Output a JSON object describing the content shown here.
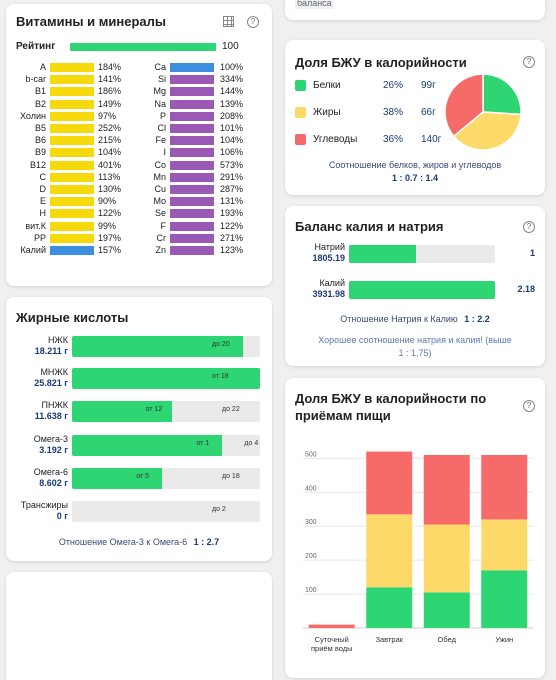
{
  "vitamins": {
    "title": "Витамины и минералы",
    "rating_label": "Рейтинг",
    "rating_value": "100",
    "rating_pct": 100,
    "left": [
      {
        "name": "A",
        "value": "184%",
        "pct": 184
      },
      {
        "name": "b-car",
        "value": "141%",
        "pct": 141
      },
      {
        "name": "B1",
        "value": "186%",
        "pct": 186
      },
      {
        "name": "B2",
        "value": "149%",
        "pct": 149
      },
      {
        "name": "Холин",
        "value": "97%",
        "pct": 97
      },
      {
        "name": "B5",
        "value": "252%",
        "pct": 252
      },
      {
        "name": "B6",
        "value": "215%",
        "pct": 215
      },
      {
        "name": "B9",
        "value": "104%",
        "pct": 104
      },
      {
        "name": "B12",
        "value": "401%",
        "pct": 401
      },
      {
        "name": "C",
        "value": "113%",
        "pct": 113
      },
      {
        "name": "D",
        "value": "130%",
        "pct": 130
      },
      {
        "name": "E",
        "value": "90%",
        "pct": 90
      },
      {
        "name": "H",
        "value": "122%",
        "pct": 122
      },
      {
        "name": "вит.К",
        "value": "99%",
        "pct": 99
      },
      {
        "name": "PP",
        "value": "197%",
        "pct": 197
      },
      {
        "name": "Калий",
        "value": "157%",
        "pct": 157
      }
    ],
    "right": [
      {
        "name": "Ca",
        "value": "100%",
        "pct": 100
      },
      {
        "name": "Si",
        "value": "334%",
        "pct": 334
      },
      {
        "name": "Mg",
        "value": "144%",
        "pct": 144
      },
      {
        "name": "Na",
        "value": "139%",
        "pct": 139
      },
      {
        "name": "P",
        "value": "208%",
        "pct": 208
      },
      {
        "name": "Cl",
        "value": "101%",
        "pct": 101
      },
      {
        "name": "Fe",
        "value": "104%",
        "pct": 104
      },
      {
        "name": "I",
        "value": "106%",
        "pct": 106
      },
      {
        "name": "Co",
        "value": "573%",
        "pct": 573
      },
      {
        "name": "Mn",
        "value": "291%",
        "pct": 291
      },
      {
        "name": "Cu",
        "value": "287%",
        "pct": 287
      },
      {
        "name": "Mo",
        "value": "131%",
        "pct": 131
      },
      {
        "name": "Se",
        "value": "193%",
        "pct": 193
      },
      {
        "name": "F",
        "value": "122%",
        "pct": 122
      },
      {
        "name": "Cr",
        "value": "271%",
        "pct": 271
      },
      {
        "name": "Zn",
        "value": "123%",
        "pct": 123
      }
    ]
  },
  "fatty": {
    "title": "Жирные кислоты",
    "rows": [
      {
        "name": "НЖК",
        "amount": "18.211 г",
        "note": "до 20",
        "fill": 0.91,
        "color": "#2ed573"
      },
      {
        "name": "МНЖК",
        "amount": "25.821 г",
        "note": "от 18",
        "fill": 1.0,
        "color": "#2ed573"
      },
      {
        "name": "ПНЖК",
        "amount": "11.638 г",
        "note": "от 12",
        "note2": "до 22",
        "fill": 0.53,
        "color": "#2ed573"
      },
      {
        "name": "Омега-3",
        "amount": "3.192 г",
        "note": "от 1",
        "note2": "до 4",
        "fill": 0.8,
        "color": "#2ed573"
      },
      {
        "name": "Омега-6",
        "amount": "8.602 г",
        "note": "от 5",
        "note2": "до 18",
        "fill": 0.48,
        "color": "#2ed573"
      },
      {
        "name": "Трансжиры",
        "amount": "0 г",
        "note": "до 2",
        "fill": 0.0,
        "color": "#2ed573"
      }
    ],
    "ratio_label": "Отношение Омега-3 к Омега-6",
    "ratio_value": "1 : 2.7"
  },
  "top_stub": {
    "text": "баланса"
  },
  "bju": {
    "title": "Доля БЖУ в калорийности",
    "rows": [
      {
        "name": "Белки",
        "pct": "26%",
        "grams": "99г",
        "color": "#2ed573"
      },
      {
        "name": "Жиры",
        "pct": "38%",
        "grams": "66г",
        "color": "#fdd96a"
      },
      {
        "name": "Углеводы",
        "pct": "36%",
        "grams": "140г",
        "color": "#f76a6a"
      }
    ],
    "pie": [
      26,
      38,
      36
    ],
    "ratio_label": "Соотношение белков, жиров и углеводов",
    "ratio_value": "1 : 0.7 : 1.4"
  },
  "potassium": {
    "title": "Баланс калия и натрия",
    "rows": [
      {
        "name": "Натрий",
        "amount": "1805.19",
        "right": "1",
        "fill": 0.46
      },
      {
        "name": "Калий",
        "amount": "3931.98",
        "right": "2.18",
        "fill": 1.0
      }
    ],
    "ratio_label": "Отношение Натрия к Калию",
    "ratio_value": "1 : 2.2",
    "note_line1": "Хорошее соотношение натрия и калия! (выше",
    "note_line2": "1 : 1,75)"
  },
  "meals": {
    "title_line1": "Доля БЖУ в калорийности по",
    "title_line2": "приёмам пищи"
  },
  "chart_data": {
    "type": "bar",
    "stacked": true,
    "categories": [
      "Суточный приём воды",
      "Завтрак",
      "Обед",
      "Ужин"
    ],
    "category_lines": [
      [
        "Суточный",
        "приём воды"
      ],
      [
        "Завтрак"
      ],
      [
        "Обед"
      ],
      [
        "Ужин"
      ]
    ],
    "series": [
      {
        "values": [
          0,
          120,
          105,
          170
        ],
        "color": "#2ed573"
      },
      {
        "values": [
          0,
          215,
          200,
          150
        ],
        "color": "#fdd96a"
      },
      {
        "values": [
          10,
          185,
          205,
          190
        ],
        "color": "#f76a6a"
      }
    ],
    "yticks": [
      100,
      200,
      300,
      400,
      500
    ],
    "ylim": [
      0,
      560
    ],
    "grid": true
  }
}
